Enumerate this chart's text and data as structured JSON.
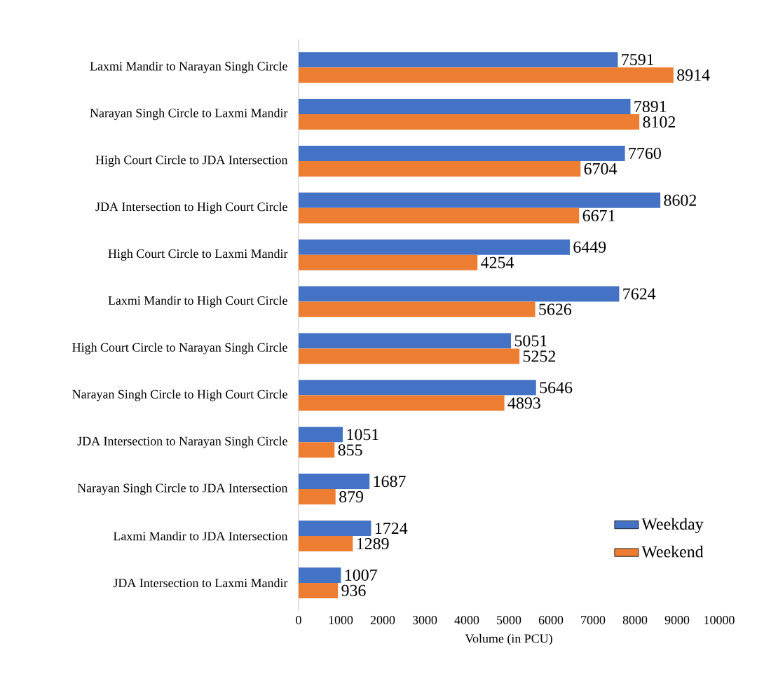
{
  "chart_data": {
    "type": "bar",
    "orientation": "horizontal",
    "xlabel": "Volume (in PCU)",
    "categories": [
      "Laxmi Mandir to Narayan Singh Circle",
      "Narayan Singh Circle to Laxmi Mandir",
      "High Court Circle to JDA Intersection",
      "JDA Intersection to High Court Circle",
      "High Court Circle to Laxmi Mandir",
      "Laxmi Mandir to High Court Circle",
      "High Court Circle to Narayan Singh Circle",
      "Narayan Singh Circle to High Court Circle",
      "JDA Intersection to Narayan Singh Circle",
      "Narayan Singh Circle to JDA Intersection",
      "Laxmi Mandir to JDA Intersection",
      "JDA Intersection to Laxmi Mandir"
    ],
    "series": [
      {
        "name": "Weekday",
        "color": "#4472c4",
        "values": [
          7591,
          7891,
          7760,
          8602,
          6449,
          7624,
          5051,
          5646,
          1051,
          1687,
          1724,
          1007
        ]
      },
      {
        "name": "Weekend",
        "color": "#ed7d31",
        "values": [
          8914,
          8102,
          6704,
          6671,
          4254,
          5626,
          5252,
          4893,
          855,
          879,
          1289,
          936
        ]
      }
    ],
    "xlim": [
      0,
      10000
    ],
    "xticks": [
      0,
      1000,
      2000,
      3000,
      4000,
      5000,
      6000,
      7000,
      8000,
      9000,
      10000
    ],
    "data_labels": true,
    "legend": "bottom right",
    "grid": false
  }
}
